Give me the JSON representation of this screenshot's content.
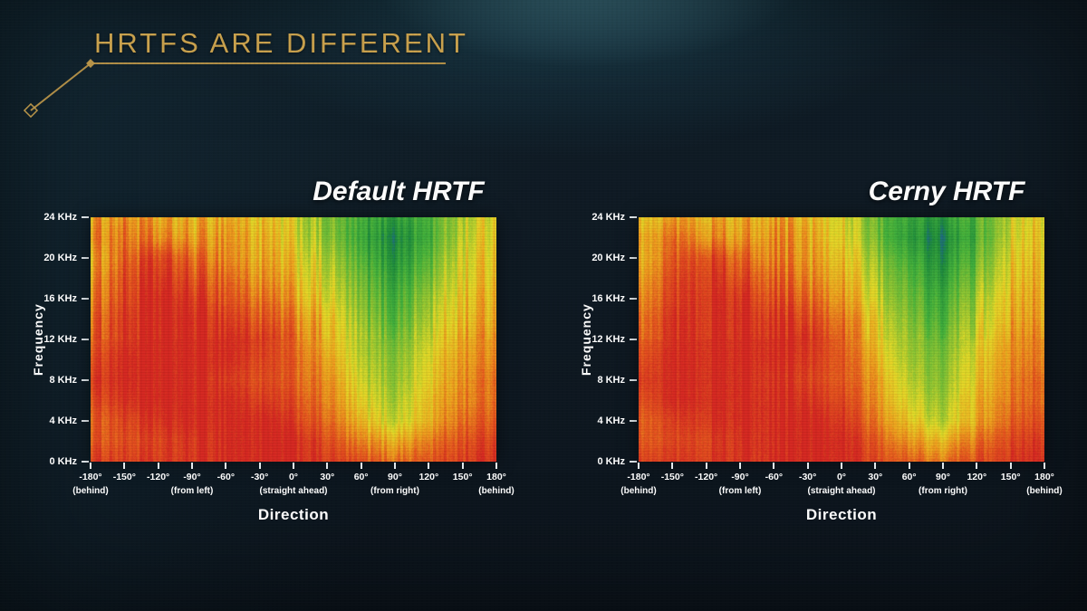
{
  "slide": {
    "title": "HRTFS ARE DIFFERENT",
    "accent_color": "#C9A14D",
    "background_color": "#0E1821",
    "glow_color": "#2F94AF"
  },
  "colormap_stops": [
    [
      0.0,
      "#2050C8"
    ],
    [
      0.16,
      "#1E8C3C"
    ],
    [
      0.34,
      "#46B43C"
    ],
    [
      0.5,
      "#96C832"
    ],
    [
      0.62,
      "#E6DC28"
    ],
    [
      0.75,
      "#F0A01E"
    ],
    [
      0.87,
      "#E85A1E"
    ],
    [
      1.0,
      "#D72822"
    ]
  ],
  "chart_data": [
    {
      "type": "heatmap",
      "title": "Default HRTF",
      "xlabel": "Direction",
      "ylabel": "Frequency",
      "x_ticks": [
        "-180°",
        "-150°",
        "-120°",
        "-90°",
        "-60°",
        "-30°",
        "0°",
        "30°",
        "60°",
        "90°",
        "120°",
        "150°",
        "180°"
      ],
      "x_sublabels": [
        {
          "text": "(behind)",
          "at": -180
        },
        {
          "text": "(from left)",
          "at": -90
        },
        {
          "text": "(straight ahead)",
          "at": 0
        },
        {
          "text": "(from right)",
          "at": 90
        },
        {
          "text": "(behind)",
          "at": 180
        }
      ],
      "y_ticks": [
        "24 KHz",
        "20 KHz",
        "16 KHz",
        "12 KHz",
        "8 KHz",
        "4 KHz",
        "0 KHz"
      ],
      "x_range": [
        -180,
        180
      ],
      "y_range_khz": [
        0,
        24
      ],
      "grid_convention": "rows top-to-bottom = 24KHz to 0KHz; columns left-to-right = -180deg to 180deg; 0=quiet(blue/green) 1=loud(red)",
      "values": [
        [
          0.74,
          0.78,
          0.72,
          0.7,
          0.74,
          0.66,
          0.6,
          0.46,
          0.3,
          0.26,
          0.34,
          0.56,
          0.64
        ],
        [
          0.78,
          0.82,
          0.78,
          0.74,
          0.78,
          0.7,
          0.62,
          0.48,
          0.28,
          0.18,
          0.32,
          0.58,
          0.66
        ],
        [
          0.72,
          0.86,
          0.92,
          0.84,
          0.8,
          0.72,
          0.66,
          0.54,
          0.34,
          0.22,
          0.38,
          0.62,
          0.68
        ],
        [
          0.76,
          0.9,
          0.96,
          0.9,
          0.86,
          0.76,
          0.7,
          0.58,
          0.4,
          0.28,
          0.44,
          0.64,
          0.7
        ],
        [
          0.8,
          0.92,
          1.0,
          0.96,
          0.9,
          0.82,
          0.74,
          0.62,
          0.44,
          0.34,
          0.5,
          0.68,
          0.72
        ],
        [
          0.84,
          0.96,
          1.0,
          1.0,
          0.96,
          0.88,
          0.8,
          0.68,
          0.48,
          0.38,
          0.54,
          0.7,
          0.74
        ],
        [
          0.86,
          0.96,
          1.0,
          1.0,
          1.0,
          0.94,
          0.84,
          0.7,
          0.52,
          0.44,
          0.58,
          0.74,
          0.78
        ],
        [
          0.9,
          1.0,
          1.0,
          1.0,
          1.0,
          0.92,
          0.86,
          0.74,
          0.54,
          0.48,
          0.62,
          0.76,
          0.8
        ],
        [
          0.94,
          1.0,
          1.0,
          1.0,
          0.96,
          0.9,
          0.86,
          0.78,
          0.58,
          0.5,
          0.64,
          0.78,
          0.84
        ],
        [
          0.9,
          0.98,
          1.0,
          1.0,
          1.0,
          0.94,
          0.9,
          0.8,
          0.62,
          0.54,
          0.68,
          0.8,
          0.84
        ],
        [
          0.86,
          0.92,
          0.96,
          1.0,
          1.0,
          1.0,
          0.94,
          0.84,
          0.68,
          0.58,
          0.7,
          0.84,
          0.88
        ],
        [
          0.88,
          0.9,
          0.92,
          0.96,
          1.0,
          1.0,
          1.0,
          0.9,
          0.78,
          0.72,
          0.8,
          0.9,
          0.94
        ],
        [
          0.94,
          0.94,
          0.94,
          0.96,
          1.0,
          1.0,
          1.0,
          0.94,
          0.88,
          0.84,
          0.88,
          0.94,
          0.98
        ]
      ]
    },
    {
      "type": "heatmap",
      "title": "Cerny HRTF",
      "xlabel": "Direction",
      "ylabel": "Frequency",
      "x_ticks": [
        "-180°",
        "-150°",
        "-120°",
        "-90°",
        "-60°",
        "-30°",
        "0°",
        "30°",
        "60°",
        "90°",
        "120°",
        "150°",
        "180°"
      ],
      "x_sublabels": [
        {
          "text": "(behind)",
          "at": -180
        },
        {
          "text": "(from left)",
          "at": -90
        },
        {
          "text": "(straight ahead)",
          "at": 0
        },
        {
          "text": "(from right)",
          "at": 90
        },
        {
          "text": "(behind)",
          "at": 180
        }
      ],
      "y_ticks": [
        "24 KHz",
        "20 KHz",
        "16 KHz",
        "12 KHz",
        "8 KHz",
        "4 KHz",
        "0 KHz"
      ],
      "x_range": [
        -180,
        180
      ],
      "y_range_khz": [
        0,
        24
      ],
      "grid_convention": "rows top-to-bottom = 24KHz to 0KHz; columns left-to-right = -180deg to 180deg; 0=quiet(blue/green) 1=loud(red)",
      "values": [
        [
          0.7,
          0.76,
          0.74,
          0.72,
          0.76,
          0.68,
          0.62,
          0.44,
          0.28,
          0.24,
          0.36,
          0.58,
          0.66
        ],
        [
          0.76,
          0.84,
          0.8,
          0.76,
          0.8,
          0.72,
          0.64,
          0.46,
          0.24,
          0.16,
          0.34,
          0.6,
          0.68
        ],
        [
          0.74,
          0.88,
          0.94,
          0.86,
          0.82,
          0.74,
          0.68,
          0.52,
          0.32,
          0.2,
          0.4,
          0.64,
          0.7
        ],
        [
          0.78,
          0.92,
          0.98,
          0.92,
          0.88,
          0.78,
          0.72,
          0.56,
          0.38,
          0.26,
          0.46,
          0.66,
          0.72
        ],
        [
          0.82,
          0.94,
          1.0,
          0.98,
          0.92,
          0.84,
          0.76,
          0.6,
          0.42,
          0.32,
          0.52,
          0.7,
          0.74
        ],
        [
          0.86,
          0.98,
          1.0,
          1.0,
          0.98,
          0.9,
          0.82,
          0.66,
          0.46,
          0.36,
          0.56,
          0.72,
          0.76
        ],
        [
          0.88,
          0.98,
          1.0,
          1.0,
          1.0,
          0.96,
          0.86,
          0.68,
          0.5,
          0.42,
          0.6,
          0.76,
          0.8
        ],
        [
          0.92,
          1.0,
          1.0,
          1.0,
          1.0,
          0.94,
          0.88,
          0.72,
          0.52,
          0.46,
          0.64,
          0.78,
          0.82
        ],
        [
          0.96,
          1.0,
          1.0,
          1.0,
          0.98,
          0.92,
          0.88,
          0.76,
          0.56,
          0.48,
          0.66,
          0.8,
          0.86
        ],
        [
          0.92,
          1.0,
          1.0,
          1.0,
          1.0,
          0.96,
          0.92,
          0.78,
          0.6,
          0.52,
          0.7,
          0.82,
          0.86
        ],
        [
          0.88,
          0.94,
          0.98,
          1.0,
          1.0,
          1.0,
          0.96,
          0.82,
          0.66,
          0.56,
          0.72,
          0.86,
          0.9
        ],
        [
          0.9,
          0.92,
          0.94,
          0.98,
          1.0,
          1.0,
          1.0,
          0.88,
          0.76,
          0.7,
          0.82,
          0.92,
          0.96
        ],
        [
          0.96,
          0.96,
          0.96,
          0.98,
          1.0,
          1.0,
          1.0,
          0.92,
          0.86,
          0.82,
          0.9,
          0.96,
          1.0
        ]
      ]
    }
  ]
}
